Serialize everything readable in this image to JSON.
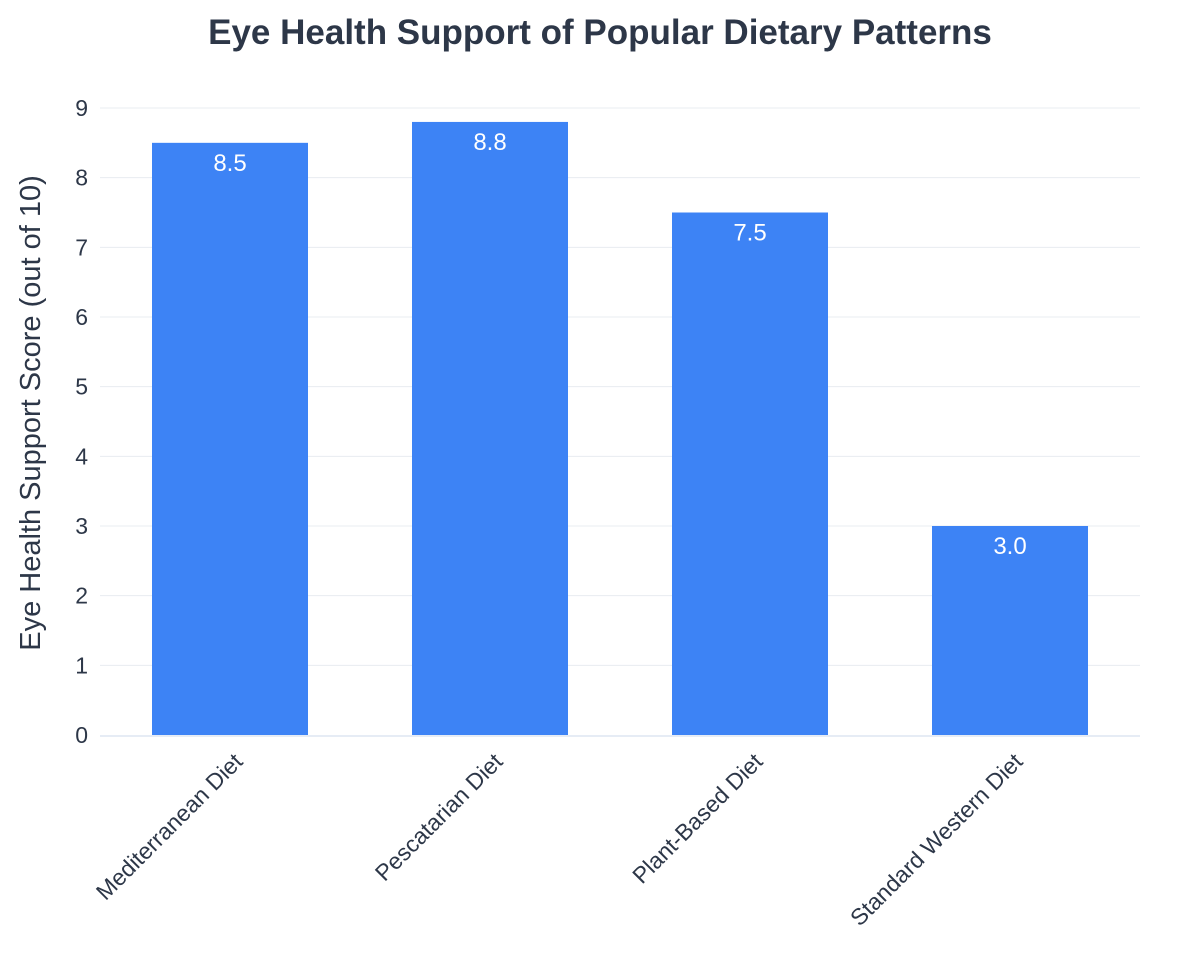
{
  "chart_data": {
    "type": "bar",
    "title": "Eye Health Support of Popular Dietary Patterns",
    "xlabel": "",
    "ylabel": "Eye Health Support Score (out of 10)",
    "categories": [
      "Mediterranean Diet",
      "Pescatarian Diet",
      "Plant-Based Diet",
      "Standard Western Diet"
    ],
    "values": [
      8.5,
      8.8,
      7.5,
      3.0
    ],
    "value_labels": [
      "8.5",
      "8.8",
      "7.5",
      "3.0"
    ],
    "ylim": [
      0,
      9
    ],
    "yticks": [
      0,
      1,
      2,
      3,
      4,
      5,
      6,
      7,
      8,
      9
    ],
    "grid": true,
    "legend": "none",
    "colors": {
      "bar": "#3d83f5",
      "text": "#2d3748",
      "grid": "#e8ecf1",
      "axis": "#e6ecf5",
      "label": "#ffffff"
    }
  }
}
